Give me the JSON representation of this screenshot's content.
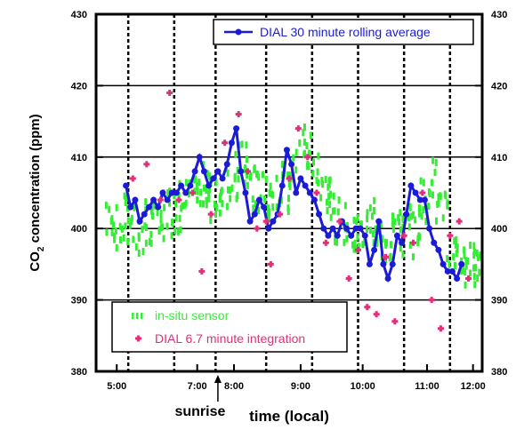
{
  "chart_data": {
    "type": "scatter",
    "xlabel": "time (local)",
    "ylabel": "CO",
    "ylabel_sub": "2",
    "ylabel_rest": " concentration (ppm)",
    "x_range": [
      4.8,
      13.2
    ],
    "ylim": [
      380,
      430
    ],
    "x_ticks": [
      {
        "x": 5.25,
        "label": "5:00"
      },
      {
        "x": 7.0,
        "label": "7:00"
      },
      {
        "x": 7.8,
        "label": "8:00"
      },
      {
        "x": 9.25,
        "label": "9:00"
      },
      {
        "x": 10.6,
        "label": "10:00"
      },
      {
        "x": 12.0,
        "label": "11:00"
      },
      {
        "x": 13.0,
        "label": "12:00"
      }
    ],
    "y_ticks": [
      380,
      390,
      400,
      410,
      420,
      430
    ],
    "y_tick_labels": [
      "380",
      "390",
      "400",
      "410",
      "420",
      "430"
    ],
    "dashed_verticals": [
      5.5,
      6.5,
      7.4,
      8.5,
      9.5,
      10.5,
      11.5,
      12.5
    ],
    "annotation": {
      "label": "sunrise",
      "x": 7.45
    },
    "legend_top": {
      "label": "DIAL 30 minute rolling average",
      "color": "#1b1bd6",
      "position": "top-right"
    },
    "legend_bottom": [
      {
        "label": "in-situ sensor",
        "color": "#33ee33"
      },
      {
        "label": "DIAL 6.7 minute integration",
        "color": "#e0307a"
      }
    ],
    "series": [
      {
        "name": "DIAL 30 minute rolling average",
        "color": "#1b1bd6",
        "x": [
          5.45,
          5.55,
          5.65,
          5.75,
          5.85,
          5.95,
          6.05,
          6.15,
          6.25,
          6.35,
          6.45,
          6.55,
          6.65,
          6.75,
          6.85,
          6.95,
          7.05,
          7.15,
          7.25,
          7.35,
          7.45,
          7.55,
          7.65,
          7.75,
          7.85,
          7.95,
          8.05,
          8.15,
          8.25,
          8.35,
          8.45,
          8.55,
          8.65,
          8.75,
          8.85,
          8.95,
          9.05,
          9.15,
          9.25,
          9.35,
          9.45,
          9.55,
          9.65,
          9.75,
          9.85,
          9.95,
          10.05,
          10.15,
          10.25,
          10.35,
          10.45,
          10.55,
          10.65,
          10.75,
          10.85,
          10.95,
          11.05,
          11.15,
          11.25,
          11.35,
          11.45,
          11.55,
          11.65,
          11.75,
          11.85,
          11.95,
          12.05,
          12.15,
          12.25,
          12.35,
          12.45,
          12.55,
          12.65,
          12.75
        ],
        "y": [
          406,
          403,
          404,
          401,
          402,
          403,
          404,
          403,
          405,
          404,
          405,
          405,
          406,
          405,
          406,
          408,
          410,
          408,
          406,
          407,
          408,
          407,
          409,
          412,
          414,
          408,
          405,
          401,
          402,
          404,
          403,
          400,
          401,
          402,
          406,
          411,
          409,
          405,
          407,
          406,
          405,
          404,
          402,
          400,
          399,
          400,
          399,
          401,
          400,
          399,
          400,
          400,
          399,
          395,
          397,
          401,
          395,
          393,
          395,
          399,
          398,
          402,
          406,
          405,
          404,
          404,
          400,
          398,
          397,
          395,
          394,
          394,
          393,
          395
        ]
      },
      {
        "name": "DIAL 6.7 minute integration",
        "color": "#e0307a",
        "x": [
          5.6,
          5.9,
          6.2,
          6.4,
          6.6,
          6.9,
          7.1,
          7.3,
          7.6,
          7.9,
          8.1,
          8.3,
          8.5,
          8.6,
          8.8,
          9.0,
          9.2,
          9.4,
          9.6,
          9.8,
          10.1,
          10.3,
          10.5,
          10.7,
          10.9,
          11.1,
          11.3,
          11.5,
          11.7,
          11.9,
          12.1,
          12.3,
          12.5,
          12.7,
          12.9
        ],
        "y": [
          407,
          409,
          404,
          419,
          404,
          405,
          394,
          402,
          412,
          416,
          408,
          400,
          401,
          395,
          402,
          407,
          414,
          410,
          405,
          398,
          401,
          393,
          397,
          389,
          388,
          396,
          387,
          399,
          398,
          405,
          390,
          386,
          399,
          401,
          393
        ]
      },
      {
        "name": "in-situ sensor",
        "color": "#33ee33",
        "x": [
          5.15,
          5.35,
          5.55,
          5.75,
          5.95,
          6.15,
          6.35,
          6.55,
          6.75,
          6.95,
          7.15,
          7.35,
          7.55,
          7.75,
          7.95,
          8.15,
          8.35,
          8.55,
          8.75,
          8.95,
          9.15,
          9.35,
          9.55,
          9.75,
          9.95,
          10.15,
          10.35,
          10.55,
          10.75,
          10.95,
          11.15,
          11.35,
          11.55,
          11.75,
          11.95,
          12.15,
          12.35,
          12.55,
          12.75,
          12.95,
          13.1
        ],
        "y": [
          401,
          400,
          402,
          399,
          401,
          400,
          403,
          402,
          404,
          404,
          406,
          404,
          405,
          407,
          409,
          407,
          405,
          404,
          406,
          405,
          408,
          412,
          409,
          405,
          404,
          401,
          400,
          399,
          401,
          400,
          398,
          400,
          399,
          401,
          404,
          407,
          402,
          397,
          396,
          395,
          396
        ]
      }
    ]
  }
}
